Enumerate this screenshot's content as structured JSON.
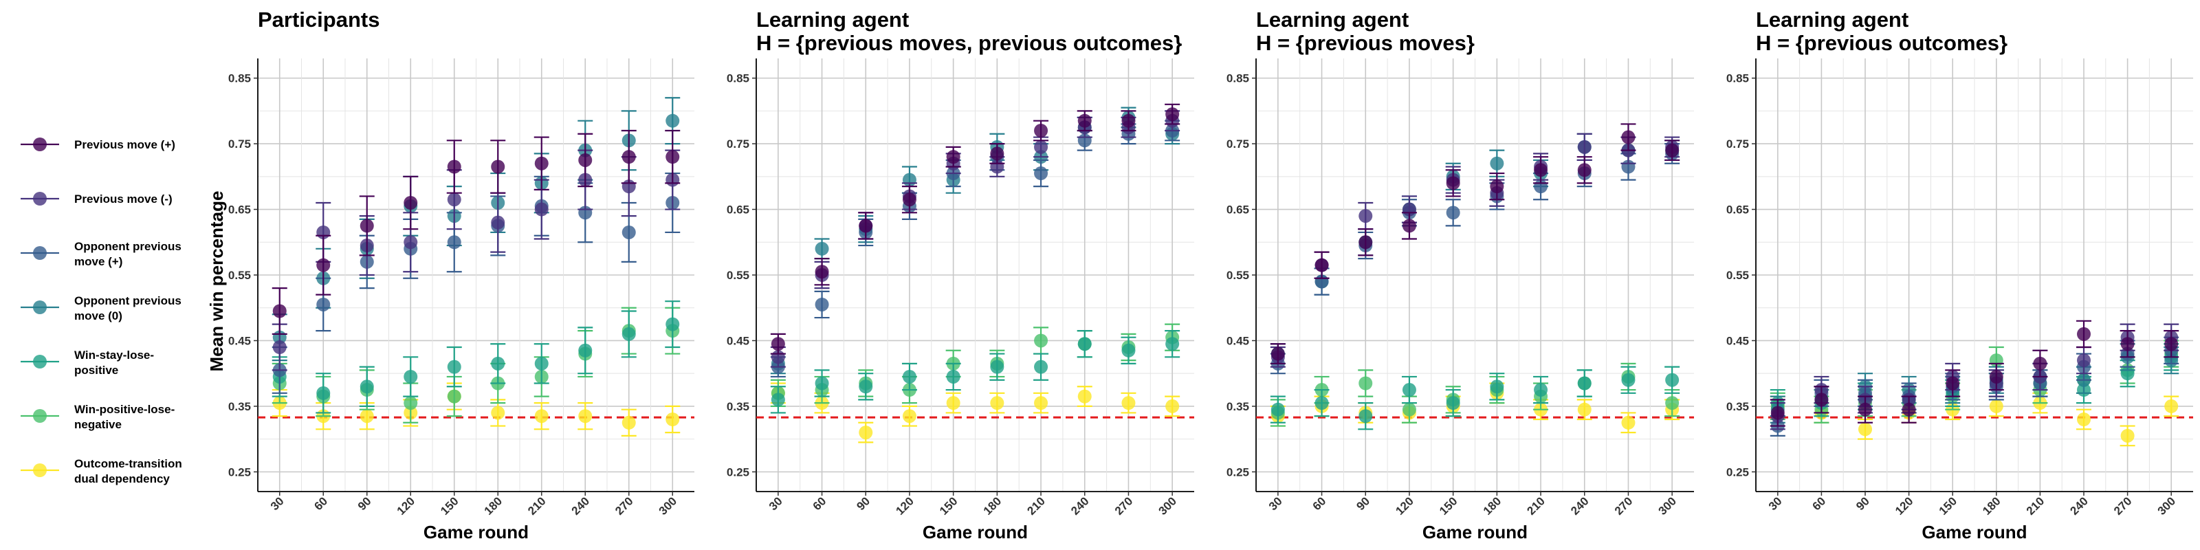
{
  "legend": {
    "items": [
      {
        "label": "Previous move (+)",
        "color": "#440154"
      },
      {
        "label": "Previous move (-)",
        "color": "#46337E"
      },
      {
        "label": "Opponent previous move (+)",
        "color": "#365C8D"
      },
      {
        "label": "Opponent previous move (0)",
        "color": "#277F8E"
      },
      {
        "label": "Win-stay-lose-positive",
        "color": "#1FA187"
      },
      {
        "label": "Win-positive-lose-negative",
        "color": "#4AC16D"
      },
      {
        "label": "Outcome-transition dual dependency",
        "color": "#FDE725"
      }
    ]
  },
  "shared": {
    "ylabel": "Mean win percentage",
    "xlabel": "Game round",
    "chance_line": 0.333,
    "chance_color": "#E41A1C"
  },
  "chart_data": [
    {
      "type": "scatter",
      "title": "Participants",
      "title_line2": "",
      "x": [
        30,
        60,
        90,
        120,
        150,
        180,
        210,
        240,
        270,
        300
      ],
      "ylim": [
        0.22,
        0.88
      ],
      "yticks": [
        "0.25",
        "0.35",
        "0.45",
        "0.55",
        "0.65",
        "0.75",
        "0.85"
      ],
      "xlabel": "Game round",
      "ylabel": "Mean win percentage",
      "series": [
        {
          "name": "Previous move (+)",
          "values": [
            0.495,
            0.565,
            0.625,
            0.66,
            0.715,
            0.715,
            0.72,
            0.725,
            0.73,
            0.73
          ],
          "err": [
            0.035,
            0.045,
            0.045,
            0.04,
            0.04,
            0.04,
            0.04,
            0.04,
            0.04,
            0.04
          ]
        },
        {
          "name": "Previous move (-)",
          "values": [
            0.44,
            0.615,
            0.595,
            0.6,
            0.665,
            0.63,
            0.65,
            0.695,
            0.685,
            0.695
          ],
          "err": [
            0.035,
            0.045,
            0.045,
            0.045,
            0.045,
            0.045,
            0.045,
            0.045,
            0.045,
            0.045
          ]
        },
        {
          "name": "Opponent previous move (+)",
          "values": [
            0.405,
            0.505,
            0.57,
            0.59,
            0.6,
            0.625,
            0.655,
            0.645,
            0.615,
            0.66
          ],
          "err": [
            0.035,
            0.04,
            0.04,
            0.045,
            0.045,
            0.045,
            0.045,
            0.045,
            0.045,
            0.045
          ]
        },
        {
          "name": "Opponent previous move (0)",
          "values": [
            0.455,
            0.545,
            0.59,
            0.655,
            0.64,
            0.66,
            0.69,
            0.74,
            0.755,
            0.785
          ],
          "err": [
            0.035,
            0.045,
            0.045,
            0.045,
            0.045,
            0.045,
            0.045,
            0.045,
            0.045,
            0.035
          ]
        },
        {
          "name": "Win-stay-lose-positive",
          "values": [
            0.395,
            0.37,
            0.38,
            0.395,
            0.41,
            0.415,
            0.415,
            0.435,
            0.46,
            0.475
          ],
          "err": [
            0.03,
            0.03,
            0.03,
            0.03,
            0.03,
            0.03,
            0.03,
            0.035,
            0.035,
            0.035
          ]
        },
        {
          "name": "Win-positive-lose-negative",
          "values": [
            0.385,
            0.365,
            0.375,
            0.355,
            0.365,
            0.385,
            0.395,
            0.43,
            0.465,
            0.465
          ],
          "err": [
            0.03,
            0.03,
            0.03,
            0.03,
            0.03,
            0.03,
            0.03,
            0.035,
            0.035,
            0.035
          ]
        },
        {
          "name": "Outcome-transition dual dependency",
          "values": [
            0.355,
            0.335,
            0.335,
            0.34,
            0.365,
            0.34,
            0.335,
            0.335,
            0.325,
            0.33
          ],
          "err": [
            0.02,
            0.02,
            0.02,
            0.02,
            0.02,
            0.02,
            0.02,
            0.02,
            0.02,
            0.02
          ]
        }
      ]
    },
    {
      "type": "scatter",
      "title": "Learning agent",
      "title_line2": "H = {previous moves, previous outcomes}",
      "x": [
        30,
        60,
        90,
        120,
        150,
        180,
        210,
        240,
        270,
        300
      ],
      "ylim": [
        0.22,
        0.88
      ],
      "yticks": [
        "0.25",
        "0.35",
        "0.45",
        "0.55",
        "0.65",
        "0.75",
        "0.85"
      ],
      "xlabel": "Game round",
      "ylabel": "",
      "series": [
        {
          "name": "Previous move (+)",
          "values": [
            0.445,
            0.555,
            0.625,
            0.665,
            0.73,
            0.735,
            0.77,
            0.785,
            0.785,
            0.795
          ],
          "err": [
            0.015,
            0.02,
            0.02,
            0.02,
            0.015,
            0.015,
            0.015,
            0.015,
            0.015,
            0.015
          ]
        },
        {
          "name": "Previous move (-)",
          "values": [
            0.425,
            0.55,
            0.625,
            0.67,
            0.72,
            0.715,
            0.745,
            0.775,
            0.775,
            0.785
          ],
          "err": [
            0.015,
            0.02,
            0.02,
            0.02,
            0.015,
            0.015,
            0.015,
            0.015,
            0.015,
            0.015
          ]
        },
        {
          "name": "Opponent previous move (+)",
          "values": [
            0.41,
            0.505,
            0.615,
            0.655,
            0.705,
            0.73,
            0.705,
            0.755,
            0.765,
            0.77
          ],
          "err": [
            0.015,
            0.02,
            0.02,
            0.02,
            0.02,
            0.02,
            0.02,
            0.015,
            0.015,
            0.015
          ]
        },
        {
          "name": "Opponent previous move (0)",
          "values": [
            0.415,
            0.59,
            0.62,
            0.695,
            0.695,
            0.745,
            0.73,
            0.775,
            0.79,
            0.765
          ],
          "err": [
            0.015,
            0.015,
            0.02,
            0.02,
            0.02,
            0.02,
            0.02,
            0.015,
            0.015,
            0.015
          ]
        },
        {
          "name": "Win-stay-lose-positive",
          "values": [
            0.36,
            0.385,
            0.38,
            0.395,
            0.395,
            0.41,
            0.41,
            0.445,
            0.435,
            0.445
          ],
          "err": [
            0.02,
            0.02,
            0.02,
            0.02,
            0.02,
            0.02,
            0.02,
            0.02,
            0.02,
            0.02
          ]
        },
        {
          "name": "Win-positive-lose-negative",
          "values": [
            0.37,
            0.375,
            0.385,
            0.375,
            0.415,
            0.415,
            0.45,
            0.445,
            0.44,
            0.455
          ],
          "err": [
            0.02,
            0.02,
            0.02,
            0.02,
            0.02,
            0.02,
            0.02,
            0.02,
            0.02,
            0.02
          ]
        },
        {
          "name": "Outcome-transition dual dependency",
          "values": [
            0.37,
            0.355,
            0.31,
            0.335,
            0.355,
            0.355,
            0.355,
            0.365,
            0.355,
            0.35
          ],
          "err": [
            0.015,
            0.015,
            0.015,
            0.015,
            0.015,
            0.015,
            0.015,
            0.015,
            0.015,
            0.015
          ]
        }
      ]
    },
    {
      "type": "scatter",
      "title": "Learning agent",
      "title_line2": "H = {previous moves}",
      "x": [
        30,
        60,
        90,
        120,
        150,
        180,
        210,
        240,
        270,
        300
      ],
      "ylim": [
        0.22,
        0.88
      ],
      "yticks": [
        "0.25",
        "0.35",
        "0.45",
        "0.55",
        "0.65",
        "0.75",
        "0.85"
      ],
      "xlabel": "Game round",
      "ylabel": "",
      "series": [
        {
          "name": "Previous move (+)",
          "values": [
            0.43,
            0.565,
            0.6,
            0.625,
            0.69,
            0.685,
            0.71,
            0.71,
            0.76,
            0.74
          ],
          "err": [
            0.015,
            0.02,
            0.02,
            0.02,
            0.02,
            0.02,
            0.02,
            0.02,
            0.02,
            0.015
          ]
        },
        {
          "name": "Previous move (-)",
          "values": [
            0.425,
            0.565,
            0.64,
            0.65,
            0.695,
            0.675,
            0.715,
            0.745,
            0.74,
            0.745
          ],
          "err": [
            0.015,
            0.02,
            0.02,
            0.02,
            0.02,
            0.02,
            0.02,
            0.02,
            0.02,
            0.015
          ]
        },
        {
          "name": "Opponent previous move (+)",
          "values": [
            0.415,
            0.54,
            0.595,
            0.645,
            0.645,
            0.67,
            0.685,
            0.705,
            0.715,
            0.735
          ],
          "err": [
            0.015,
            0.02,
            0.02,
            0.02,
            0.02,
            0.02,
            0.02,
            0.02,
            0.02,
            0.015
          ]
        },
        {
          "name": "Opponent previous move (0)",
          "values": [
            0.43,
            0.54,
            0.6,
            0.65,
            0.7,
            0.72,
            0.705,
            0.745,
            0.74,
            0.74
          ],
          "err": [
            0.015,
            0.02,
            0.02,
            0.02,
            0.02,
            0.02,
            0.02,
            0.02,
            0.02,
            0.015
          ]
        },
        {
          "name": "Win-stay-lose-positive",
          "values": [
            0.345,
            0.355,
            0.335,
            0.375,
            0.355,
            0.38,
            0.375,
            0.385,
            0.39,
            0.39
          ],
          "err": [
            0.02,
            0.02,
            0.02,
            0.02,
            0.02,
            0.02,
            0.02,
            0.02,
            0.02,
            0.02
          ]
        },
        {
          "name": "Win-positive-lose-negative",
          "values": [
            0.34,
            0.375,
            0.385,
            0.345,
            0.36,
            0.375,
            0.365,
            0.385,
            0.395,
            0.355
          ],
          "err": [
            0.02,
            0.02,
            0.02,
            0.02,
            0.02,
            0.02,
            0.02,
            0.02,
            0.02,
            0.02
          ]
        },
        {
          "name": "Outcome-transition dual dependency",
          "values": [
            0.335,
            0.35,
            0.34,
            0.34,
            0.35,
            0.37,
            0.345,
            0.345,
            0.325,
            0.345
          ],
          "err": [
            0.015,
            0.015,
            0.015,
            0.015,
            0.015,
            0.015,
            0.015,
            0.015,
            0.015,
            0.015
          ]
        }
      ]
    },
    {
      "type": "scatter",
      "title": "Learning agent",
      "title_line2": "H = {previous outcomes}",
      "x": [
        30,
        60,
        90,
        120,
        150,
        180,
        210,
        240,
        270,
        300
      ],
      "ylim": [
        0.22,
        0.88
      ],
      "yticks": [
        "0.25",
        "0.35",
        "0.45",
        "0.55",
        "0.65",
        "0.75",
        "0.85"
      ],
      "xlabel": "Game round",
      "ylabel": "",
      "series": [
        {
          "name": "Previous move (+)",
          "values": [
            0.34,
            0.36,
            0.345,
            0.345,
            0.385,
            0.395,
            0.415,
            0.46,
            0.445,
            0.445
          ],
          "err": [
            0.02,
            0.02,
            0.02,
            0.02,
            0.02,
            0.02,
            0.02,
            0.02,
            0.02,
            0.02
          ]
        },
        {
          "name": "Previous move (-)",
          "values": [
            0.335,
            0.375,
            0.36,
            0.36,
            0.395,
            0.385,
            0.395,
            0.42,
            0.455,
            0.455
          ],
          "err": [
            0.02,
            0.02,
            0.02,
            0.02,
            0.02,
            0.02,
            0.02,
            0.02,
            0.02,
            0.02
          ]
        },
        {
          "name": "Opponent previous move (+)",
          "values": [
            0.32,
            0.37,
            0.37,
            0.365,
            0.38,
            0.38,
            0.385,
            0.41,
            0.43,
            0.435
          ],
          "err": [
            0.015,
            0.02,
            0.02,
            0.02,
            0.02,
            0.02,
            0.02,
            0.02,
            0.02,
            0.02
          ]
        },
        {
          "name": "Opponent previous move (0)",
          "values": [
            0.345,
            0.36,
            0.38,
            0.375,
            0.375,
            0.39,
            0.395,
            0.39,
            0.425,
            0.42
          ],
          "err": [
            0.02,
            0.02,
            0.02,
            0.02,
            0.02,
            0.02,
            0.02,
            0.02,
            0.02,
            0.02
          ]
        },
        {
          "name": "Win-stay-lose-positive",
          "values": [
            0.355,
            0.355,
            0.365,
            0.36,
            0.37,
            0.385,
            0.385,
            0.375,
            0.4,
            0.425
          ],
          "err": [
            0.02,
            0.02,
            0.02,
            0.02,
            0.02,
            0.02,
            0.02,
            0.02,
            0.02,
            0.02
          ]
        },
        {
          "name": "Win-positive-lose-negative",
          "values": [
            0.35,
            0.345,
            0.355,
            0.355,
            0.365,
            0.42,
            0.375,
            0.39,
            0.405,
            0.43
          ],
          "err": [
            0.02,
            0.02,
            0.02,
            0.02,
            0.02,
            0.02,
            0.02,
            0.02,
            0.02,
            0.02
          ]
        },
        {
          "name": "Outcome-transition dual dependency",
          "values": [
            0.35,
            0.34,
            0.315,
            0.34,
            0.345,
            0.35,
            0.355,
            0.33,
            0.305,
            0.35
          ],
          "err": [
            0.015,
            0.015,
            0.015,
            0.015,
            0.015,
            0.015,
            0.015,
            0.015,
            0.015,
            0.015
          ]
        }
      ]
    }
  ]
}
